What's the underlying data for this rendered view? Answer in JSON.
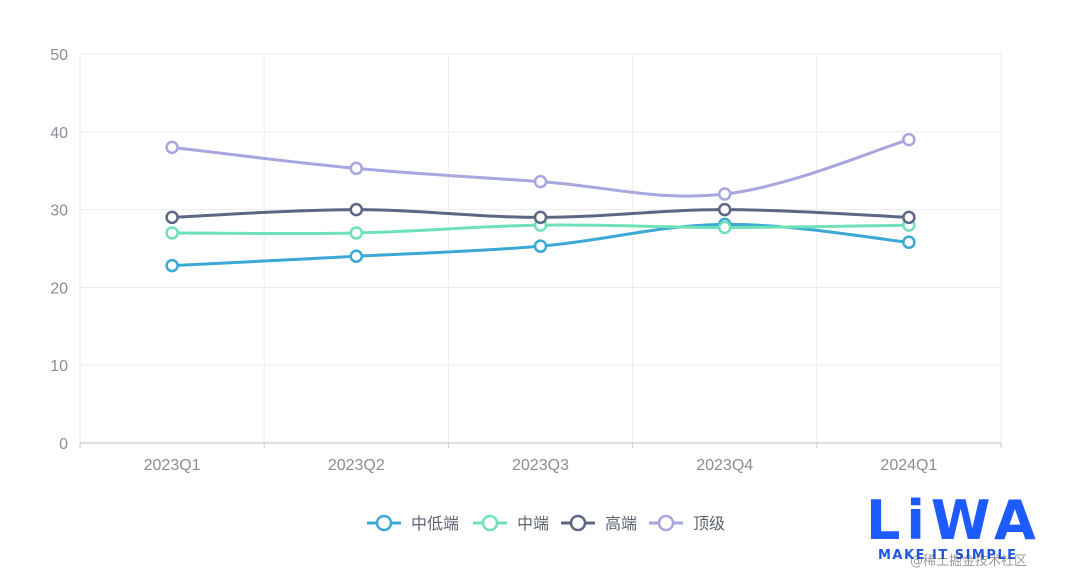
{
  "chart_data": {
    "type": "line",
    "title": "",
    "xlabel": "",
    "ylabel": "",
    "categories": [
      "2023Q1",
      "2023Q2",
      "2023Q3",
      "2023Q4",
      "2024Q1"
    ],
    "ylim": [
      0,
      50
    ],
    "yticks": [
      0,
      10,
      20,
      30,
      40,
      50
    ],
    "grid": true,
    "legend_position": "bottom-center",
    "smooth": true,
    "series": [
      {
        "name": "中低端",
        "color": "#3ba8d6",
        "values": [
          22.8,
          24.0,
          25.3,
          28.1,
          25.8
        ]
      },
      {
        "name": "中端",
        "color": "#6fe0b7",
        "values": [
          27.0,
          27.0,
          28.0,
          27.7,
          28.0
        ]
      },
      {
        "name": "高端",
        "color": "#5c6784",
        "values": [
          29.0,
          30.0,
          29.0,
          30.0,
          29.0
        ]
      },
      {
        "name": "顶级",
        "color": "#a7a6de",
        "values": [
          38.0,
          35.3,
          33.6,
          32.0,
          39.0
        ]
      }
    ]
  },
  "logo": {
    "main_text": "LiWA",
    "sub_text": "MAKE IT SIMPLE",
    "color": "#1e5bff"
  },
  "watermark": {
    "text": "@稀土掘金技术社区"
  }
}
